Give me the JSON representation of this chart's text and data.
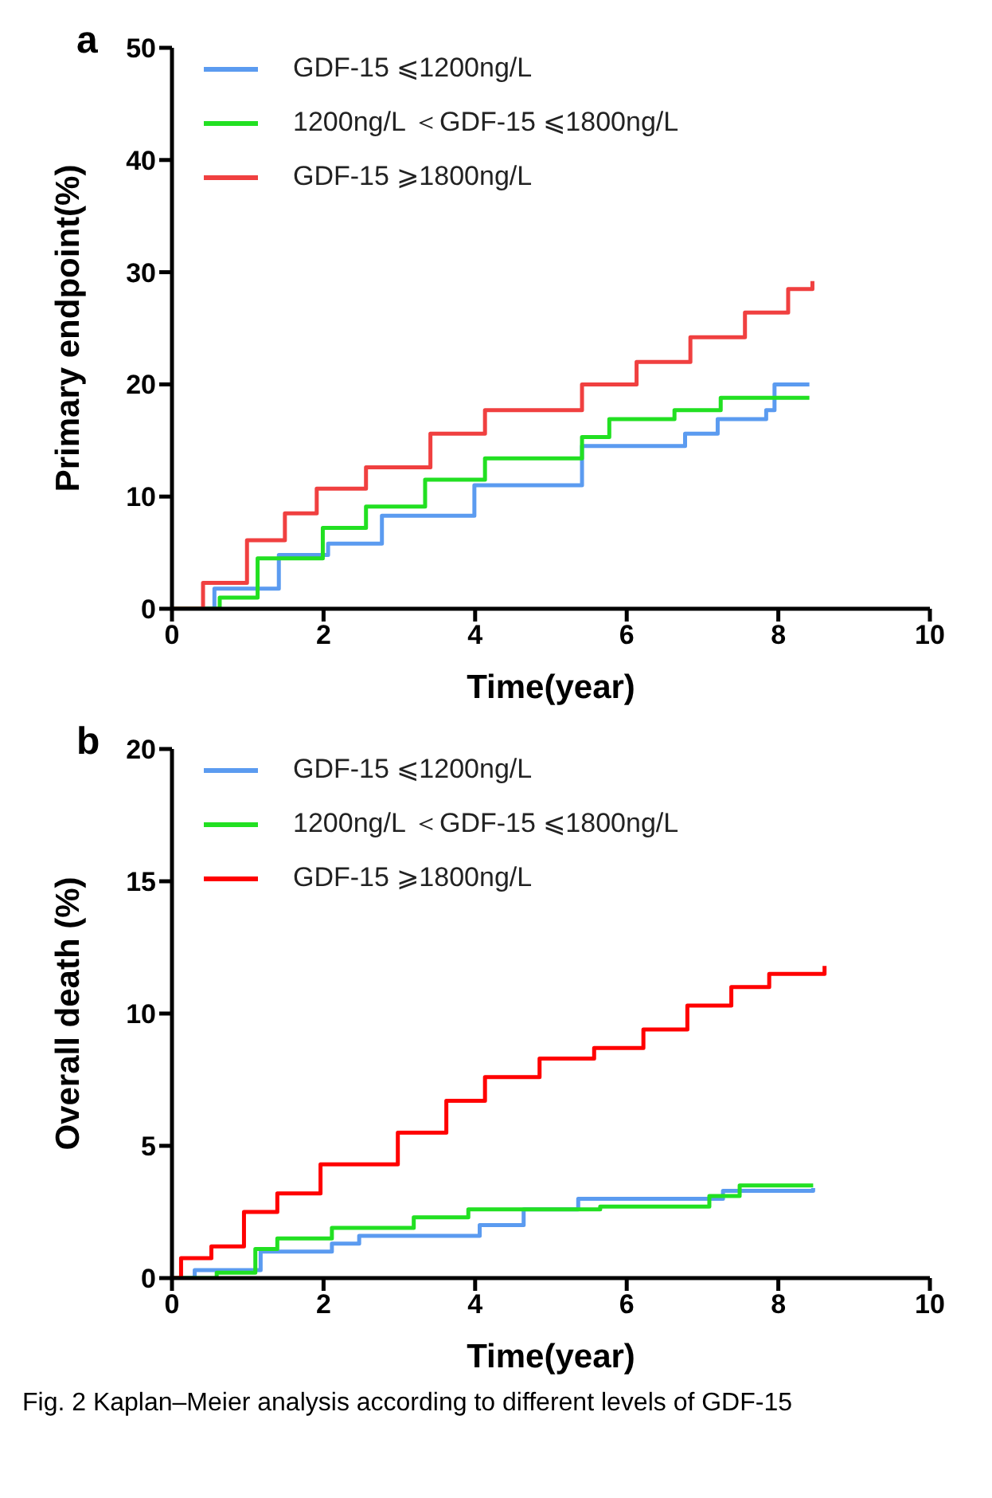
{
  "chart_data": [
    {
      "type": "step",
      "title": "a",
      "xlabel": "Time(year)",
      "ylabel": "Primary endpoint(%)",
      "xlim": [
        0,
        10
      ],
      "xticks": [
        0,
        2,
        4,
        6,
        8,
        10
      ],
      "ylim": [
        0,
        50
      ],
      "yticks": [
        0,
        10,
        20,
        30,
        40,
        50
      ],
      "grid": false,
      "legend": "top left",
      "line_style": "solid",
      "marker": "none",
      "series": [
        {
          "name": "GDF-15 ⩽1200ng/L",
          "color": "#5b9bf0",
          "x": [
            0,
            0.56,
            1.41,
            2.06,
            2.77,
            3.99,
            5.41,
            6.77,
            7.2,
            7.84,
            7.95,
            8.41
          ],
          "values": [
            0,
            1.8,
            4.8,
            5.8,
            8.3,
            11.0,
            14.5,
            15.6,
            16.9,
            17.7,
            20.0,
            20.0
          ]
        },
        {
          "name": "1200ng/L ＜GDF-15 ⩽1800ng/L",
          "color": "#22e022",
          "x": [
            0,
            0.63,
            1.13,
            1.99,
            2.56,
            3.34,
            4.13,
            5.41,
            5.77,
            6.63,
            7.24,
            8.41
          ],
          "values": [
            0,
            1.0,
            4.5,
            7.2,
            9.1,
            11.5,
            13.4,
            15.3,
            16.9,
            17.7,
            18.8,
            18.8
          ]
        },
        {
          "name": "GDF-15 ⩾1800ng/L",
          "color": "#f04040",
          "x": [
            0,
            0.41,
            0.99,
            1.49,
            1.91,
            2.56,
            3.41,
            4.13,
            5.41,
            6.13,
            6.84,
            7.56,
            8.13,
            8.45
          ],
          "values": [
            0,
            2.3,
            6.1,
            8.5,
            10.7,
            12.6,
            15.6,
            17.7,
            20.0,
            22.0,
            24.2,
            26.4,
            28.5,
            29.2
          ]
        }
      ]
    },
    {
      "type": "step",
      "title": "b",
      "xlabel": "Time(year)",
      "ylabel": "Overall death (%)",
      "xlim": [
        0,
        10
      ],
      "xticks": [
        0,
        2,
        4,
        6,
        8,
        10
      ],
      "ylim": [
        0,
        20
      ],
      "yticks": [
        0,
        5,
        10,
        15,
        20
      ],
      "grid": false,
      "legend": "top left",
      "line_style": "solid",
      "marker": "none",
      "annotations": [
        "Fig. 2  Kaplan–Meier analysis according to different levels of GDF-15"
      ],
      "series": [
        {
          "name": "GDF-15 ⩽1200ng/L",
          "color": "#5b9bf0",
          "x": [
            0,
            0.3,
            1.17,
            2.11,
            2.47,
            4.06,
            4.64,
            5.36,
            7.27,
            8.46
          ],
          "values": [
            0,
            0.3,
            1.0,
            1.3,
            1.6,
            2.0,
            2.6,
            3.0,
            3.3,
            3.4
          ]
        },
        {
          "name": "1200ng/L ＜GDF-15 ⩽1800ng/L",
          "color": "#22e022",
          "x": [
            0,
            0.59,
            1.1,
            1.39,
            2.11,
            3.19,
            3.91,
            5.14,
            5.65,
            7.09,
            7.49,
            8.46
          ],
          "values": [
            0,
            0.2,
            1.1,
            1.5,
            1.9,
            2.3,
            2.6,
            2.6,
            2.7,
            3.1,
            3.5,
            3.5
          ]
        },
        {
          "name": "GDF-15 ⩾1800ng/L",
          "color": "#ff0000",
          "x": [
            0,
            0.12,
            0.52,
            0.95,
            1.39,
            1.96,
            2.98,
            3.62,
            4.13,
            4.85,
            5.57,
            6.22,
            6.8,
            7.38,
            7.88,
            8.61
          ],
          "values": [
            0,
            0.75,
            1.2,
            2.5,
            3.2,
            4.3,
            5.5,
            6.7,
            7.6,
            8.3,
            8.7,
            9.4,
            10.3,
            11.0,
            11.5,
            11.8
          ]
        }
      ]
    }
  ]
}
